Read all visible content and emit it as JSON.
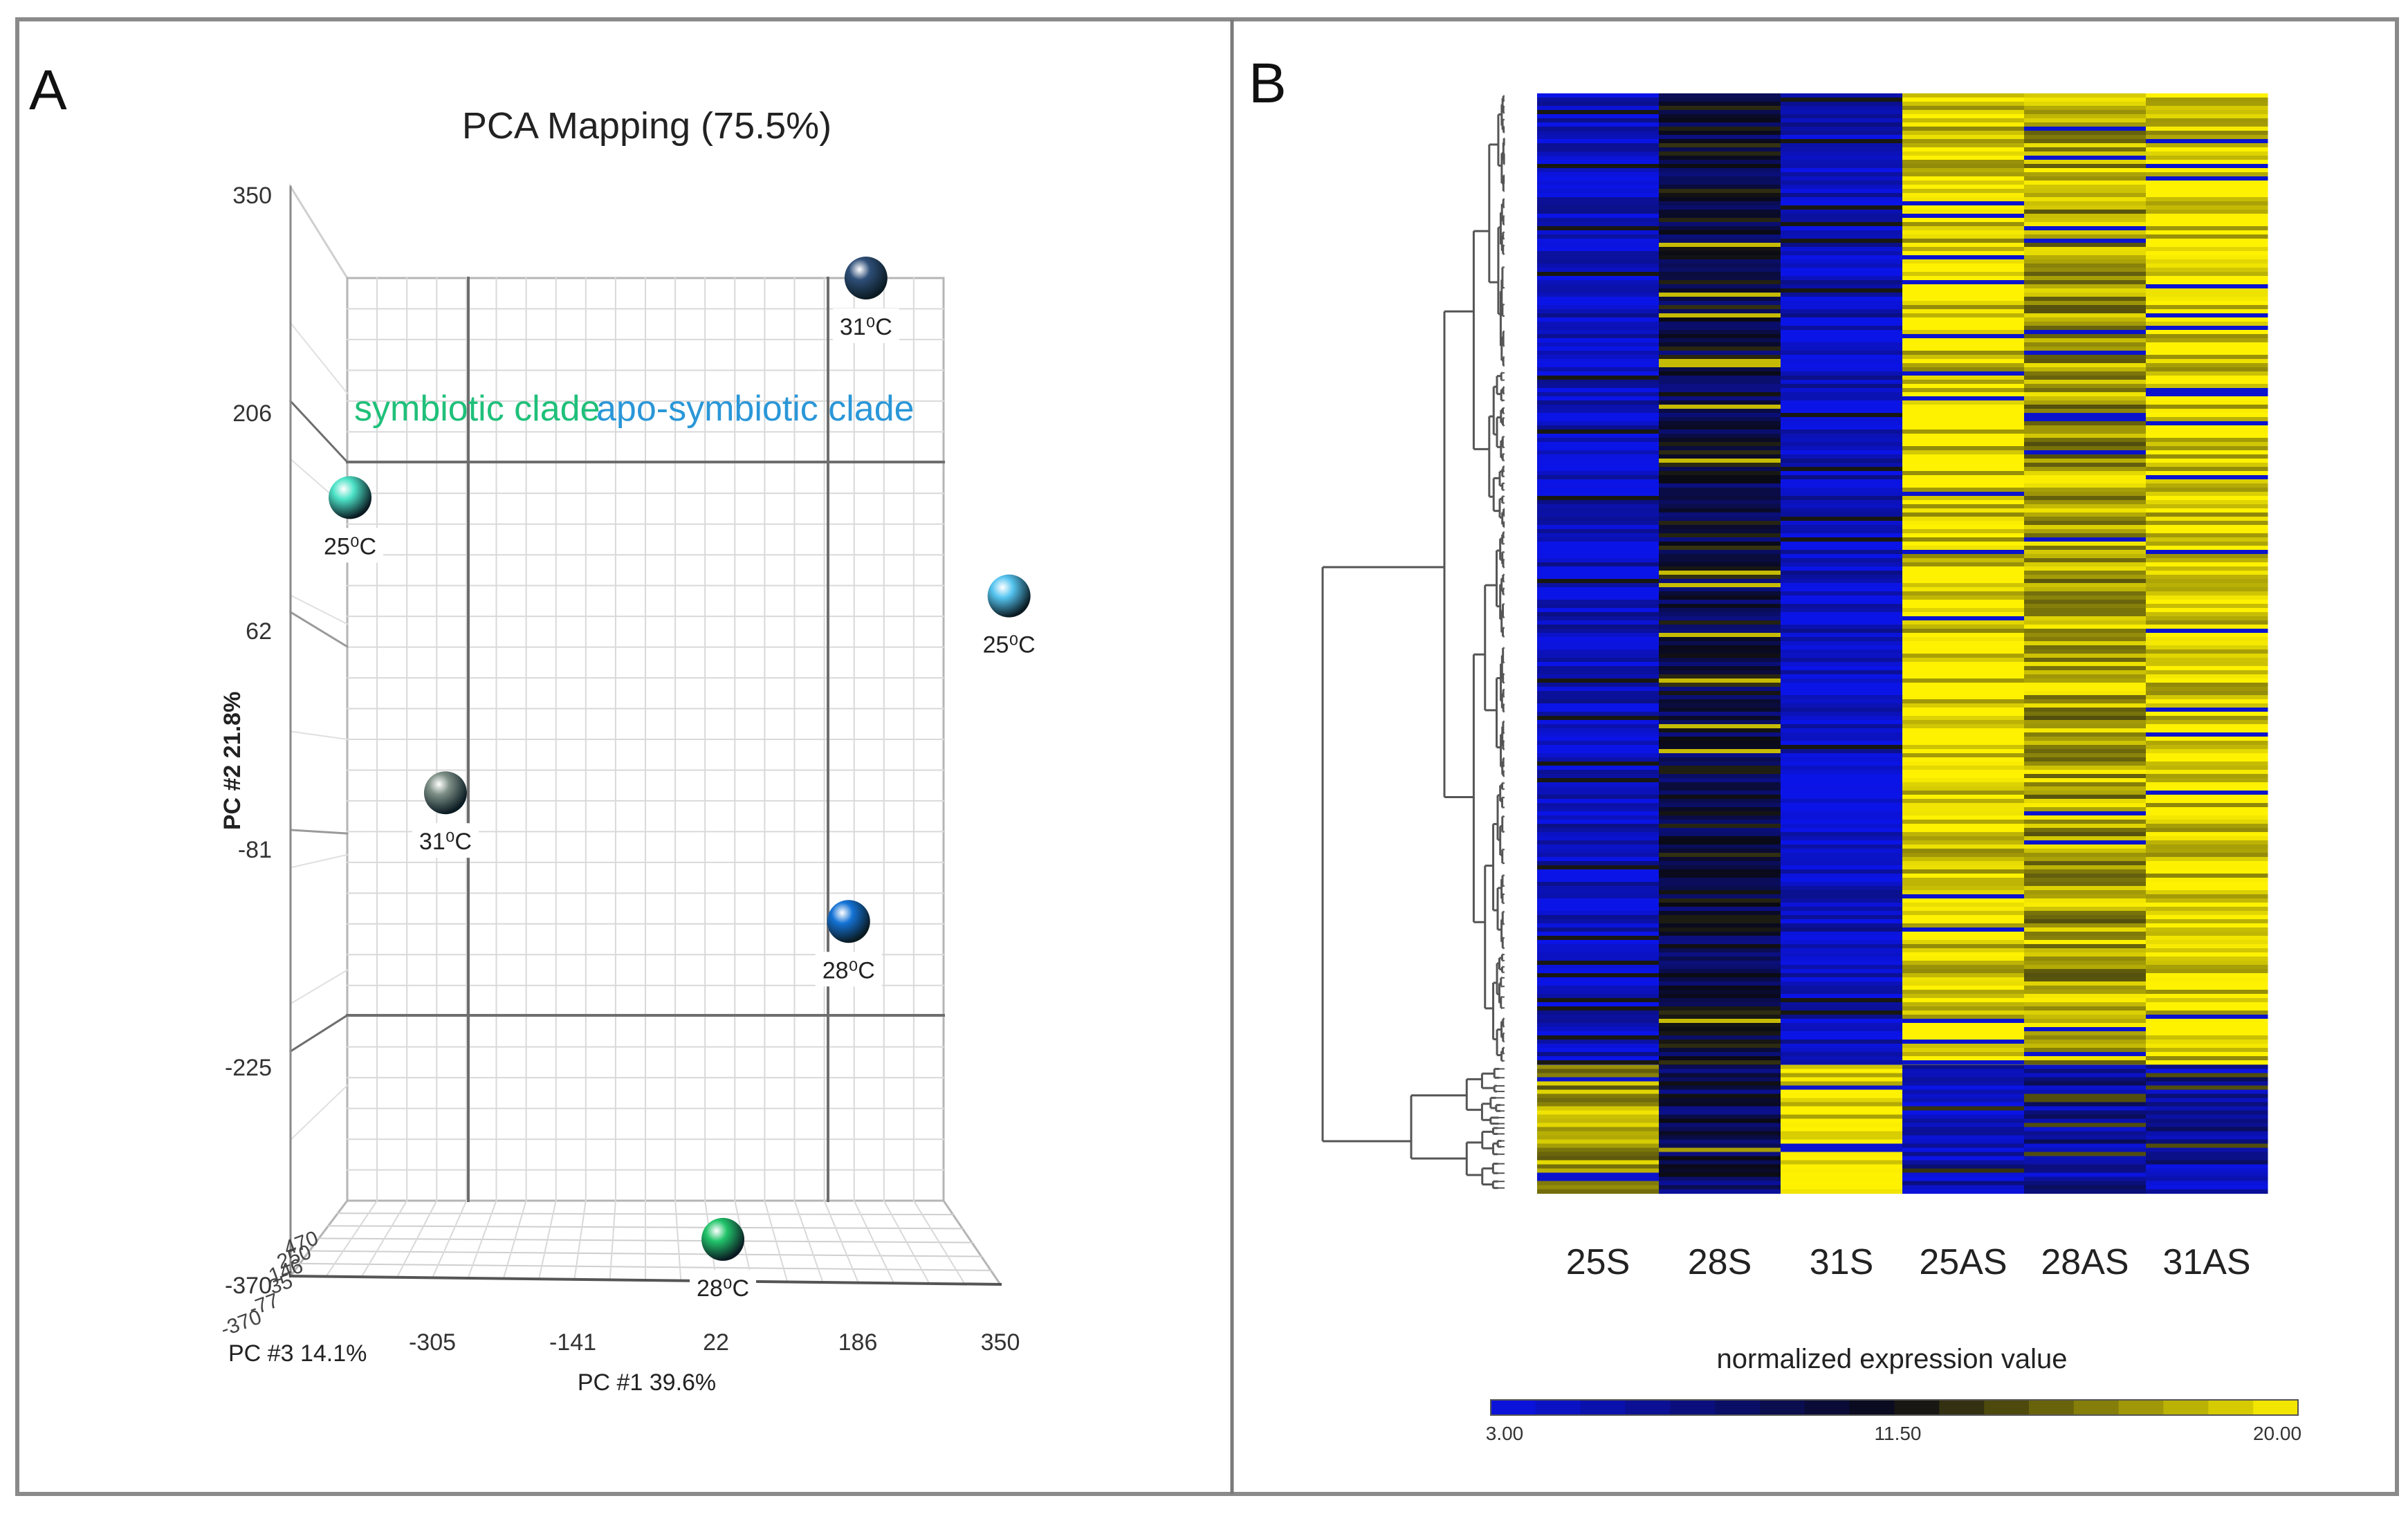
{
  "panel_a": {
    "letter": "A",
    "title": "PCA Mapping (75.5%)",
    "x_label": "PC #1 39.6%",
    "y_label": "PC #2 21.8%",
    "z_label": "PC #3 14.1%",
    "x_ticks": [
      "-305",
      "-141",
      "22",
      "186",
      "350"
    ],
    "y_ticks": [
      "350",
      "206",
      "62",
      "-81",
      "-225",
      "-370"
    ],
    "z_ticks": [
      "470",
      "250",
      "146",
      "35",
      "-77",
      "-370"
    ],
    "annotations": [
      {
        "text": "symbiotic clade",
        "color": "#1fc07a"
      },
      {
        "text": "apo-symbiotic clade",
        "color": "#2a97d8"
      }
    ]
  },
  "panel_b": {
    "letter": "B",
    "columns": [
      "25S",
      "28S",
      "31S",
      "25AS",
      "28AS",
      "31AS"
    ],
    "legend_title": "normalized expression value",
    "legend_ticks": [
      "3.00",
      "11.50",
      "20.00"
    ],
    "color_low": "#0b14e6",
    "color_mid": "#0a0a14",
    "color_high": "#fff200"
  },
  "chart_data": [
    {
      "type": "scatter",
      "title": "PCA Mapping (75.5%)",
      "xlabel": "PC #1 39.6%",
      "ylabel": "PC #2 21.8%",
      "zlabel": "PC #3 14.1%",
      "xlim": [
        -370,
        350
      ],
      "ylim": [
        -370,
        350
      ],
      "series": [
        {
          "name": "symbiotic clade",
          "points": [
            {
              "label": "25⁰C",
              "x": -400,
              "y": 150,
              "color": "#4de3c7"
            },
            {
              "label": "31⁰C",
              "x": -290,
              "y": -45,
              "color": "#7d8f86"
            },
            {
              "label": "28⁰C",
              "x": 30,
              "y": -340,
              "color": "#22c46a"
            }
          ]
        },
        {
          "name": "apo-symbiotic clade",
          "points": [
            {
              "label": "31⁰C",
              "x": 195,
              "y": 295,
              "color": "#2f4f78"
            },
            {
              "label": "25⁰C",
              "x": 360,
              "y": 85,
              "color": "#55c4f0"
            },
            {
              "label": "28⁰C",
              "x": 175,
              "y": -130,
              "color": "#1473d6"
            }
          ]
        }
      ]
    },
    {
      "type": "heatmap",
      "columns": [
        "25S",
        "28S",
        "31S",
        "25AS",
        "28AS",
        "31AS"
      ],
      "value_range": [
        3.0,
        20.0
      ],
      "legend_ticks": [
        3.0,
        11.5,
        20.0
      ],
      "row_blocks": [
        {
          "fraction": 0.885,
          "values": {
            "25S": 4,
            "28S": 10,
            "31S": 4,
            "25AS": 19,
            "28AS": 17,
            "31AS": 19
          }
        },
        {
          "fraction": 0.115,
          "values": {
            "25S": 17,
            "28S": 9,
            "31S": 20,
            "25AS": 5,
            "28AS": 6,
            "31AS": 6
          }
        }
      ]
    }
  ]
}
